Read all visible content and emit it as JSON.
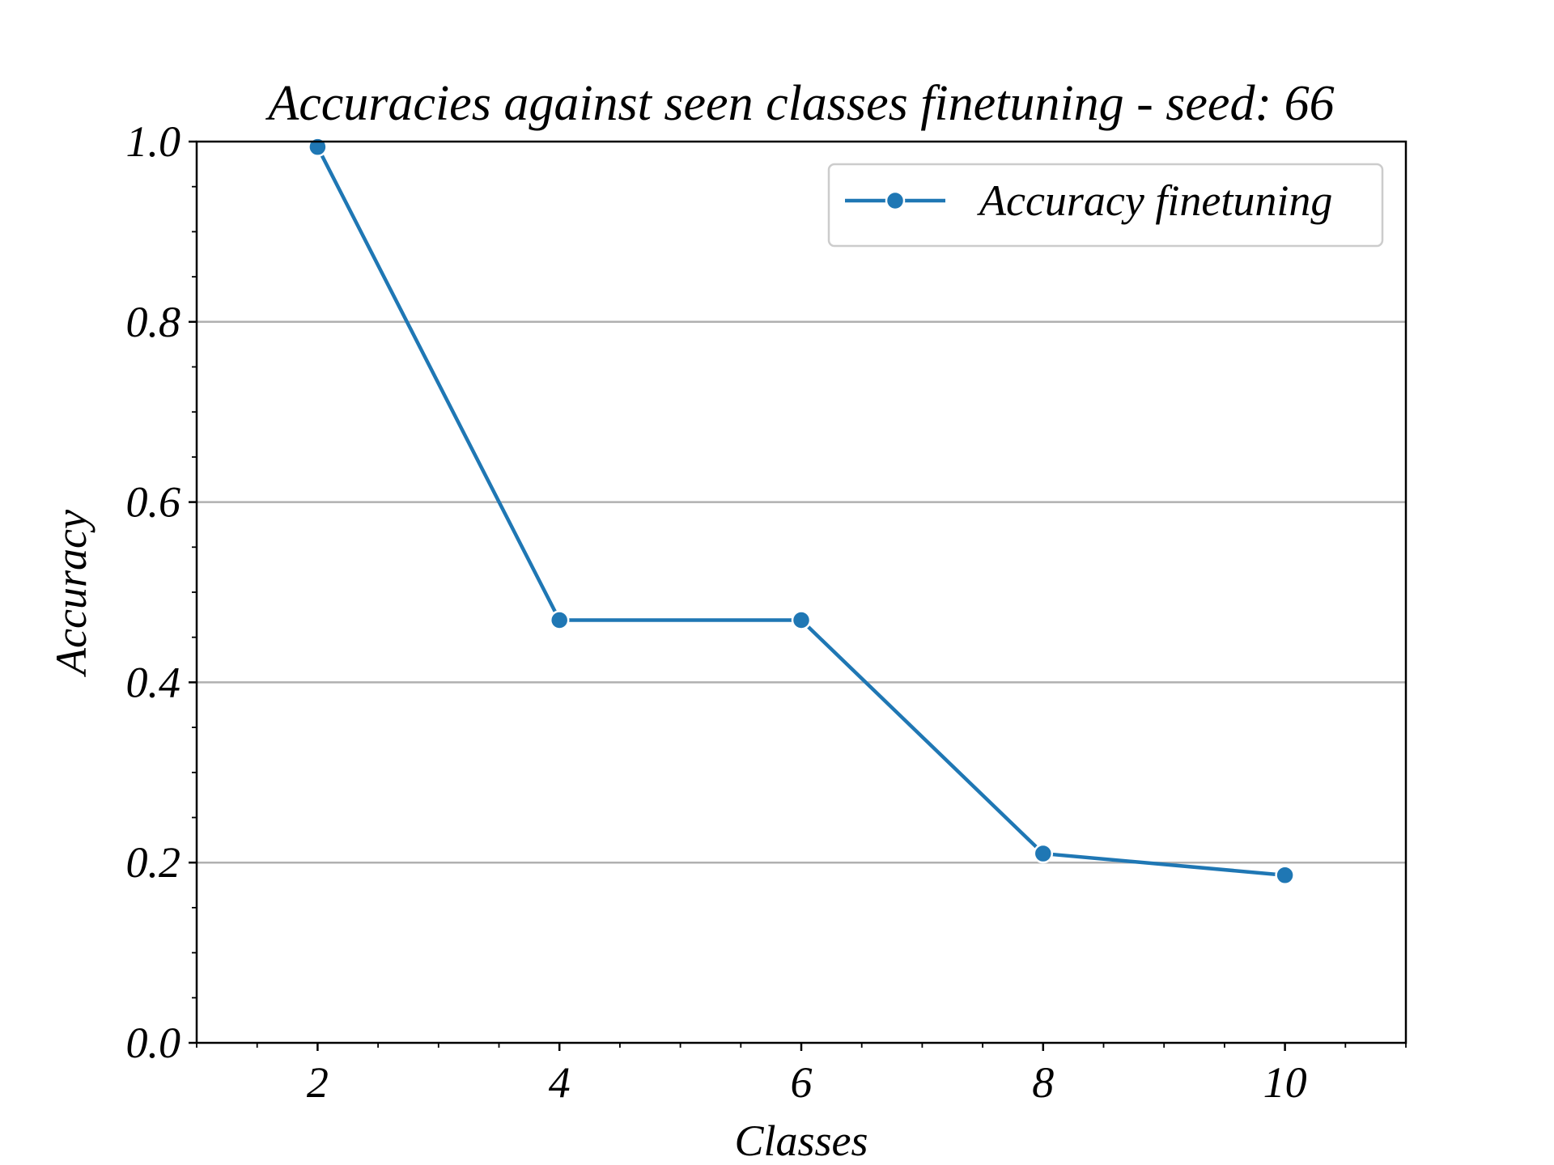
{
  "chart_data": {
    "type": "line",
    "title": "Accuracies against seen classes finetuning - seed: 66",
    "xlabel": "Classes",
    "ylabel": "Accuracy",
    "xlim": [
      1,
      11
    ],
    "ylim": [
      0.0,
      1.0
    ],
    "xticks": [
      2,
      4,
      6,
      8,
      10
    ],
    "xtick_labels": [
      "2",
      "4",
      "6",
      "8",
      "10"
    ],
    "yticks": [
      0.0,
      0.2,
      0.4,
      0.6,
      0.8,
      1.0
    ],
    "ytick_labels": [
      "0.0",
      "0.2",
      "0.4",
      "0.6",
      "0.8",
      "1.0"
    ],
    "x_minor_step": 0.5,
    "y_minor_step": 0.05,
    "grid": "horizontal",
    "legend_position": "top-right",
    "series": [
      {
        "name": "Accuracy finetuning",
        "color": "#1f77b4",
        "marker": "circle",
        "x": [
          2,
          4,
          6,
          8,
          10
        ],
        "values": [
          0.994,
          0.469,
          0.469,
          0.21,
          0.186
        ]
      }
    ]
  }
}
